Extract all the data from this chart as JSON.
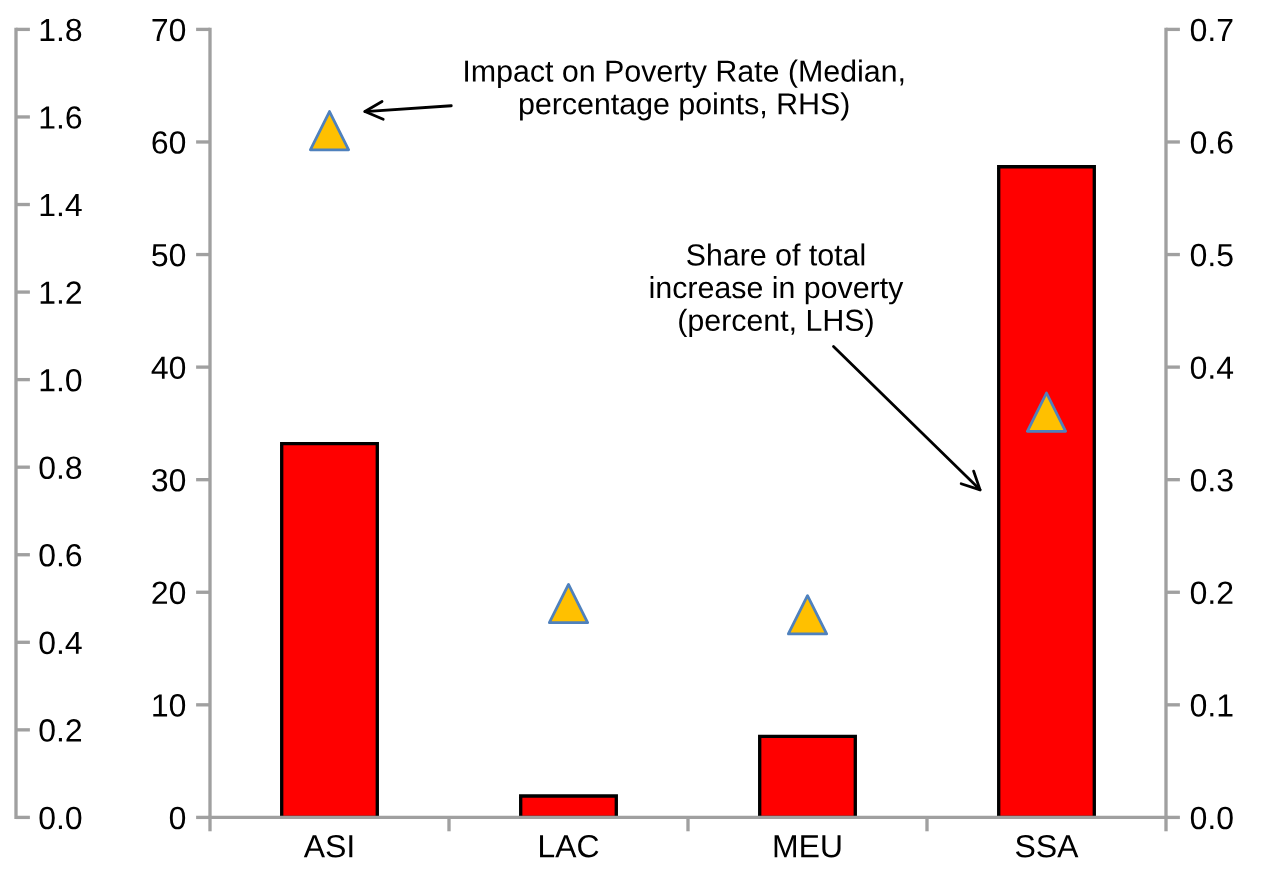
{
  "chart_data": {
    "type": "bar",
    "categories": [
      "ASI",
      "LAC",
      "MEU",
      "SSA"
    ],
    "series": [
      {
        "color": "#ff0000",
        "values": [
          33.2,
          1.9,
          7.2,
          57.8
        ]
      },
      {
        "type": "scatter",
        "axis": "y2",
        "color": "#ffc000",
        "marker": "triangle",
        "values": [
          0.61,
          0.19,
          0.18,
          0.36
        ]
      }
    ],
    "ylim": [
      0,
      70
    ],
    "yticks": [
      0,
      10,
      20,
      30,
      40,
      50,
      60,
      70
    ],
    "y2lim": [
      0.0,
      0.7
    ],
    "y2ticks": [
      {
        "value": 0,
        "label": "0.0"
      },
      0.1,
      0.2,
      0.3,
      0.4,
      0.5,
      0.6,
      0.7
    ],
    "y3lim": [
      0.0,
      1.8
    ],
    "y3ticks": [
      {
        "value": 0,
        "label": "0.0"
      },
      0.2,
      0.4,
      0.6,
      0.8,
      {
        "value": 1,
        "label": "1.0"
      },
      1.2,
      1.4,
      1.6,
      1.8
    ],
    "annotations": [
      "Impact on Poverty Rate (Median,\npercentage points, RHS)",
      "Share of total\nincrease in poverty\n(percent, LHS)"
    ],
    "grid": false,
    "legend": false
  }
}
